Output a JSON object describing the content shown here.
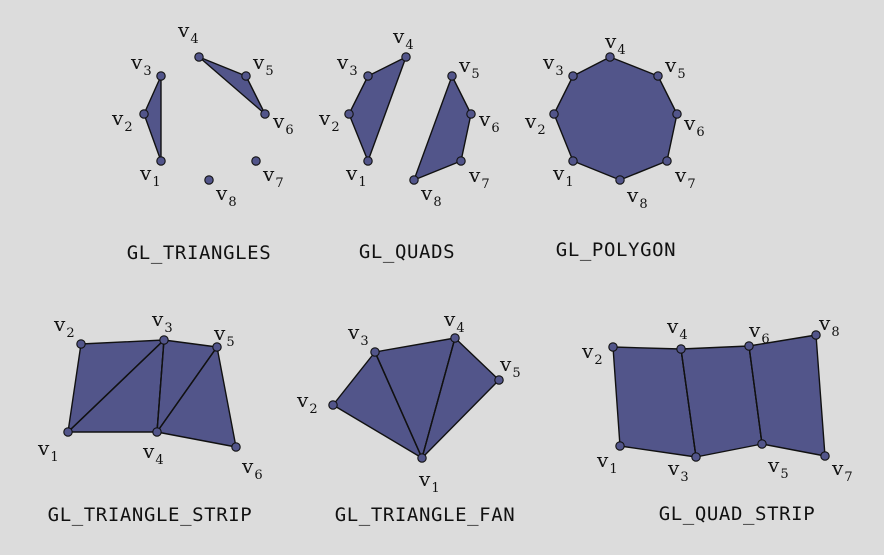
{
  "vertex_prefix": "v",
  "colors": {
    "fill": "#52558a",
    "stroke": "#111111",
    "background": "#dcdcdc"
  },
  "panels": [
    {
      "id": "triangles",
      "title": "GL_TRIANGLES",
      "vertices": [
        "1",
        "2",
        "3",
        "4",
        "5",
        "6",
        "7",
        "8"
      ]
    },
    {
      "id": "quads",
      "title": "GL_QUADS",
      "vertices": [
        "1",
        "2",
        "3",
        "4",
        "5",
        "6",
        "7",
        "8"
      ]
    },
    {
      "id": "polygon",
      "title": "GL_POLYGON",
      "vertices": [
        "1",
        "2",
        "3",
        "4",
        "5",
        "6",
        "7",
        "8"
      ]
    },
    {
      "id": "triangle-strip",
      "title": "GL_TRIANGLE_STRIP",
      "vertices": [
        "1",
        "2",
        "3",
        "4",
        "5",
        "6"
      ]
    },
    {
      "id": "triangle-fan",
      "title": "GL_TRIANGLE_FAN",
      "vertices": [
        "1",
        "2",
        "3",
        "4",
        "5"
      ]
    },
    {
      "id": "quad-strip",
      "title": "GL_QUAD_STRIP",
      "vertices": [
        "1",
        "2",
        "3",
        "4",
        "5",
        "6",
        "7",
        "8"
      ]
    }
  ]
}
